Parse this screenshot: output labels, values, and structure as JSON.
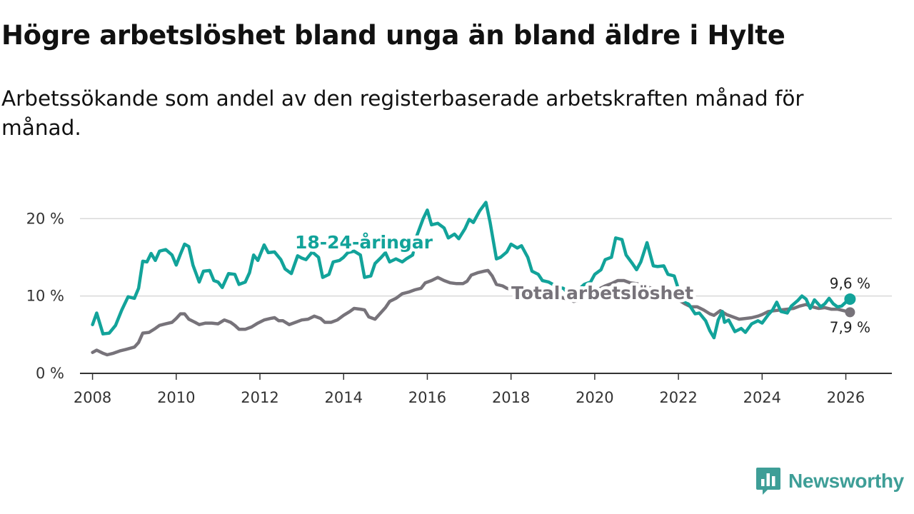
{
  "title": "Högre arbetslöshet bland unga än bland äldre i Hylte",
  "subtitle": "Arbetssökande som andel av den registerbaserade arbetskraften månad för månad.",
  "brand": {
    "name": "Newsworthy",
    "icon": "bar-chart-logo-icon",
    "color": "#3e9e97"
  },
  "colors": {
    "youth": "#12a39a",
    "total": "#77737a",
    "grid": "#d9d9d9",
    "axis": "#333333"
  },
  "chart_data": {
    "type": "line",
    "title": "Högre arbetslöshet bland unga än bland äldre i Hylte",
    "subtitle": "Arbetssökande som andel av den registerbaserade arbetskraften månad för månad.",
    "xlabel": "",
    "ylabel": "",
    "xlim": [
      2007.7,
      2027.1
    ],
    "ylim": [
      0,
      21.5
    ],
    "y_ticks": [
      0,
      10,
      20
    ],
    "y_tick_labels": [
      "0 %",
      "10 %",
      "20 %"
    ],
    "x_ticks": [
      2008,
      2010,
      2012,
      2014,
      2016,
      2018,
      2020,
      2022,
      2024,
      2026
    ],
    "x_tick_labels": [
      "2008",
      "2010",
      "2012",
      "2014",
      "2016",
      "2018",
      "2020",
      "2022",
      "2024",
      "2026"
    ],
    "grid": true,
    "series": [
      {
        "name": "18-24-åringar",
        "color": "#12a39a",
        "end_label": "9,6 %",
        "points": [
          [
            2008.0,
            6.3
          ],
          [
            2008.1,
            7.8
          ],
          [
            2008.25,
            5.1
          ],
          [
            2008.4,
            5.2
          ],
          [
            2008.55,
            6.2
          ],
          [
            2008.7,
            8.2
          ],
          [
            2008.85,
            9.9
          ],
          [
            2009.0,
            9.7
          ],
          [
            2009.1,
            11.0
          ],
          [
            2009.2,
            14.5
          ],
          [
            2009.3,
            14.4
          ],
          [
            2009.4,
            15.5
          ],
          [
            2009.5,
            14.6
          ],
          [
            2009.6,
            15.8
          ],
          [
            2009.75,
            16.0
          ],
          [
            2009.9,
            15.3
          ],
          [
            2010.0,
            14.0
          ],
          [
            2010.1,
            15.4
          ],
          [
            2010.2,
            16.7
          ],
          [
            2010.3,
            16.4
          ],
          [
            2010.4,
            14.0
          ],
          [
            2010.55,
            11.8
          ],
          [
            2010.65,
            13.2
          ],
          [
            2010.8,
            13.3
          ],
          [
            2010.9,
            12.0
          ],
          [
            2011.0,
            11.8
          ],
          [
            2011.1,
            11.1
          ],
          [
            2011.25,
            12.9
          ],
          [
            2011.4,
            12.8
          ],
          [
            2011.5,
            11.5
          ],
          [
            2011.65,
            11.8
          ],
          [
            2011.75,
            13.0
          ],
          [
            2011.85,
            15.3
          ],
          [
            2011.95,
            14.6
          ],
          [
            2012.1,
            16.6
          ],
          [
            2012.2,
            15.6
          ],
          [
            2012.35,
            15.7
          ],
          [
            2012.5,
            14.7
          ],
          [
            2012.6,
            13.5
          ],
          [
            2012.75,
            12.9
          ],
          [
            2012.9,
            15.2
          ],
          [
            2013.0,
            14.9
          ],
          [
            2013.1,
            14.7
          ],
          [
            2013.25,
            15.7
          ],
          [
            2013.4,
            15.0
          ],
          [
            2013.5,
            12.4
          ],
          [
            2013.65,
            12.8
          ],
          [
            2013.75,
            14.4
          ],
          [
            2013.9,
            14.6
          ],
          [
            2014.0,
            15.0
          ],
          [
            2014.1,
            15.6
          ],
          [
            2014.25,
            15.8
          ],
          [
            2014.4,
            15.3
          ],
          [
            2014.5,
            12.4
          ],
          [
            2014.65,
            12.6
          ],
          [
            2014.75,
            14.2
          ],
          [
            2014.9,
            15.0
          ],
          [
            2015.0,
            15.6
          ],
          [
            2015.1,
            14.4
          ],
          [
            2015.25,
            14.8
          ],
          [
            2015.4,
            14.4
          ],
          [
            2015.5,
            14.8
          ],
          [
            2015.65,
            15.3
          ],
          [
            2015.75,
            17.8
          ],
          [
            2015.9,
            20.0
          ],
          [
            2016.0,
            21.1
          ],
          [
            2016.1,
            19.2
          ],
          [
            2016.25,
            19.4
          ],
          [
            2016.4,
            18.8
          ],
          [
            2016.5,
            17.5
          ],
          [
            2016.65,
            18.0
          ],
          [
            2016.75,
            17.4
          ],
          [
            2016.9,
            18.7
          ],
          [
            2017.0,
            19.9
          ],
          [
            2017.1,
            19.5
          ],
          [
            2017.25,
            21.0
          ],
          [
            2017.4,
            22.1
          ],
          [
            2017.5,
            19.5
          ],
          [
            2017.65,
            14.8
          ],
          [
            2017.75,
            15.0
          ],
          [
            2017.9,
            15.7
          ],
          [
            2018.0,
            16.7
          ],
          [
            2018.15,
            16.2
          ],
          [
            2018.25,
            16.5
          ],
          [
            2018.4,
            15.0
          ],
          [
            2018.5,
            13.2
          ],
          [
            2018.65,
            12.8
          ],
          [
            2018.75,
            12.0
          ],
          [
            2018.9,
            11.8
          ],
          [
            2019.0,
            11.5
          ],
          [
            2019.15,
            11.1
          ],
          [
            2019.25,
            11.0
          ],
          [
            2019.4,
            10.2
          ],
          [
            2019.5,
            9.9
          ],
          [
            2019.65,
            11.0
          ],
          [
            2019.75,
            11.5
          ],
          [
            2019.9,
            11.8
          ],
          [
            2020.0,
            12.8
          ],
          [
            2020.15,
            13.4
          ],
          [
            2020.25,
            14.7
          ],
          [
            2020.4,
            15.0
          ],
          [
            2020.5,
            17.5
          ],
          [
            2020.65,
            17.3
          ],
          [
            2020.75,
            15.3
          ],
          [
            2020.9,
            14.2
          ],
          [
            2021.0,
            13.4
          ],
          [
            2021.1,
            14.4
          ],
          [
            2021.25,
            16.9
          ],
          [
            2021.4,
            13.9
          ],
          [
            2021.5,
            13.8
          ],
          [
            2021.65,
            13.9
          ],
          [
            2021.75,
            12.8
          ],
          [
            2021.9,
            12.6
          ],
          [
            2022.0,
            10.9
          ],
          [
            2022.1,
            9.5
          ],
          [
            2022.25,
            8.9
          ],
          [
            2022.4,
            7.7
          ],
          [
            2022.5,
            7.8
          ],
          [
            2022.65,
            6.8
          ],
          [
            2022.75,
            5.5
          ],
          [
            2022.85,
            4.6
          ],
          [
            2022.95,
            6.9
          ],
          [
            2023.05,
            8.0
          ],
          [
            2023.1,
            6.6
          ],
          [
            2023.2,
            6.9
          ],
          [
            2023.35,
            5.4
          ],
          [
            2023.5,
            5.8
          ],
          [
            2023.6,
            5.3
          ],
          [
            2023.75,
            6.4
          ],
          [
            2023.9,
            6.8
          ],
          [
            2024.0,
            6.5
          ],
          [
            2024.15,
            7.6
          ],
          [
            2024.25,
            8.2
          ],
          [
            2024.35,
            9.2
          ],
          [
            2024.45,
            8.0
          ],
          [
            2024.6,
            7.8
          ],
          [
            2024.7,
            8.7
          ],
          [
            2024.85,
            9.4
          ],
          [
            2024.95,
            10.0
          ],
          [
            2025.05,
            9.6
          ],
          [
            2025.15,
            8.4
          ],
          [
            2025.25,
            9.5
          ],
          [
            2025.4,
            8.6
          ],
          [
            2025.5,
            9.0
          ],
          [
            2025.6,
            9.7
          ],
          [
            2025.7,
            9.0
          ],
          [
            2025.8,
            8.6
          ],
          [
            2025.9,
            8.7
          ],
          [
            2026.0,
            9.2
          ],
          [
            2026.1,
            9.6
          ]
        ]
      },
      {
        "name": "Total arbetslöshet",
        "color": "#77737a",
        "end_label": "7,9 %",
        "points": [
          [
            2008.0,
            2.7
          ],
          [
            2008.1,
            3.0
          ],
          [
            2008.25,
            2.6
          ],
          [
            2008.35,
            2.4
          ],
          [
            2008.5,
            2.6
          ],
          [
            2008.65,
            2.9
          ],
          [
            2008.8,
            3.1
          ],
          [
            2009.0,
            3.4
          ],
          [
            2009.1,
            4.0
          ],
          [
            2009.2,
            5.2
          ],
          [
            2009.35,
            5.3
          ],
          [
            2009.5,
            5.8
          ],
          [
            2009.6,
            6.2
          ],
          [
            2009.75,
            6.4
          ],
          [
            2009.9,
            6.6
          ],
          [
            2010.0,
            7.1
          ],
          [
            2010.1,
            7.7
          ],
          [
            2010.2,
            7.7
          ],
          [
            2010.3,
            7.0
          ],
          [
            2010.45,
            6.6
          ],
          [
            2010.55,
            6.3
          ],
          [
            2010.7,
            6.5
          ],
          [
            2010.85,
            6.5
          ],
          [
            2011.0,
            6.4
          ],
          [
            2011.15,
            6.9
          ],
          [
            2011.3,
            6.6
          ],
          [
            2011.4,
            6.2
          ],
          [
            2011.5,
            5.7
          ],
          [
            2011.65,
            5.7
          ],
          [
            2011.8,
            6.0
          ],
          [
            2011.95,
            6.5
          ],
          [
            2012.1,
            6.9
          ],
          [
            2012.25,
            7.1
          ],
          [
            2012.35,
            7.2
          ],
          [
            2012.45,
            6.8
          ],
          [
            2012.55,
            6.8
          ],
          [
            2012.7,
            6.3
          ],
          [
            2012.85,
            6.6
          ],
          [
            2013.0,
            6.9
          ],
          [
            2013.15,
            7.0
          ],
          [
            2013.3,
            7.4
          ],
          [
            2013.45,
            7.1
          ],
          [
            2013.55,
            6.6
          ],
          [
            2013.7,
            6.6
          ],
          [
            2013.85,
            6.9
          ],
          [
            2014.0,
            7.5
          ],
          [
            2014.15,
            8.0
          ],
          [
            2014.25,
            8.4
          ],
          [
            2014.4,
            8.3
          ],
          [
            2014.5,
            8.2
          ],
          [
            2014.6,
            7.3
          ],
          [
            2014.75,
            7.0
          ],
          [
            2014.85,
            7.6
          ],
          [
            2015.0,
            8.5
          ],
          [
            2015.1,
            9.3
          ],
          [
            2015.25,
            9.7
          ],
          [
            2015.4,
            10.3
          ],
          [
            2015.55,
            10.5
          ],
          [
            2015.7,
            10.8
          ],
          [
            2015.85,
            11.0
          ],
          [
            2015.95,
            11.7
          ],
          [
            2016.1,
            12.0
          ],
          [
            2016.25,
            12.4
          ],
          [
            2016.4,
            12.0
          ],
          [
            2016.55,
            11.7
          ],
          [
            2016.7,
            11.6
          ],
          [
            2016.85,
            11.6
          ],
          [
            2016.95,
            11.9
          ],
          [
            2017.05,
            12.7
          ],
          [
            2017.2,
            13.0
          ],
          [
            2017.35,
            13.2
          ],
          [
            2017.45,
            13.3
          ],
          [
            2017.55,
            12.6
          ],
          [
            2017.65,
            11.5
          ],
          [
            2017.8,
            11.3
          ],
          [
            2017.9,
            11.0
          ],
          [
            2018.05,
            10.8
          ],
          [
            2018.2,
            10.6
          ],
          [
            2018.35,
            10.5
          ],
          [
            2018.5,
            10.2
          ],
          [
            2018.65,
            10.0
          ],
          [
            2018.8,
            9.9
          ],
          [
            2019.0,
            9.8
          ],
          [
            2019.2,
            9.8
          ],
          [
            2019.35,
            9.6
          ],
          [
            2019.5,
            9.3
          ],
          [
            2019.65,
            9.5
          ],
          [
            2019.8,
            10.0
          ],
          [
            2019.95,
            10.4
          ],
          [
            2020.1,
            10.9
          ],
          [
            2020.25,
            11.3
          ],
          [
            2020.4,
            11.6
          ],
          [
            2020.55,
            12.0
          ],
          [
            2020.7,
            12.0
          ],
          [
            2020.85,
            11.7
          ],
          [
            2021.0,
            11.6
          ],
          [
            2021.15,
            11.4
          ],
          [
            2021.3,
            11.1
          ],
          [
            2021.5,
            10.8
          ],
          [
            2021.7,
            10.5
          ],
          [
            2021.85,
            10.1
          ],
          [
            2022.0,
            9.5
          ],
          [
            2022.15,
            9.0
          ],
          [
            2022.3,
            8.6
          ],
          [
            2022.45,
            8.6
          ],
          [
            2022.6,
            8.2
          ],
          [
            2022.75,
            7.7
          ],
          [
            2022.85,
            7.5
          ],
          [
            2023.0,
            8.1
          ],
          [
            2023.15,
            7.6
          ],
          [
            2023.3,
            7.3
          ],
          [
            2023.45,
            7.0
          ],
          [
            2023.6,
            7.1
          ],
          [
            2023.75,
            7.2
          ],
          [
            2023.9,
            7.4
          ],
          [
            2024.0,
            7.6
          ],
          [
            2024.15,
            8.0
          ],
          [
            2024.3,
            8.1
          ],
          [
            2024.45,
            8.2
          ],
          [
            2024.6,
            8.3
          ],
          [
            2024.75,
            8.4
          ],
          [
            2024.9,
            8.7
          ],
          [
            2025.05,
            8.9
          ],
          [
            2025.2,
            8.6
          ],
          [
            2025.35,
            8.4
          ],
          [
            2025.5,
            8.5
          ],
          [
            2025.65,
            8.3
          ],
          [
            2025.8,
            8.3
          ],
          [
            2025.95,
            8.1
          ],
          [
            2026.1,
            7.9
          ]
        ]
      }
    ]
  }
}
